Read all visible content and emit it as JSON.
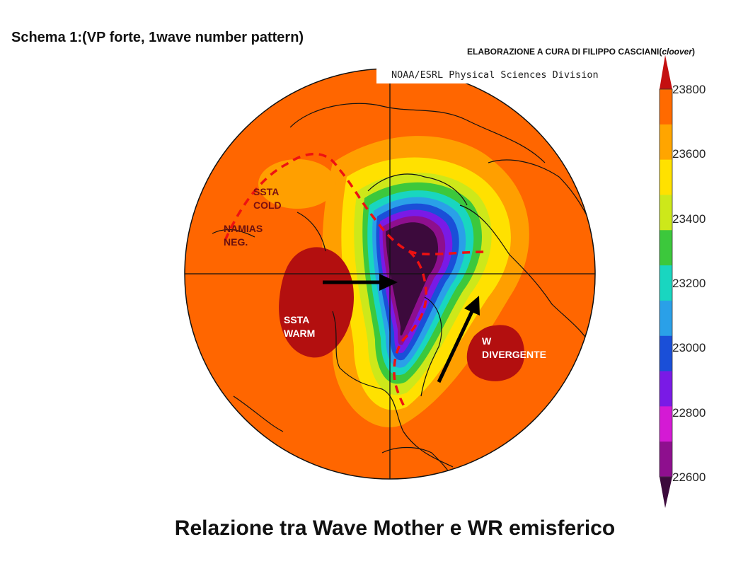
{
  "header": {
    "schema_title": "Schema 1:(VP  forte, 1wave number pattern)",
    "credit_text": "ELABORAZIONE A CURA DI FILIPPO CASCIANI(",
    "credit_user": "cloover",
    "credit_close": ")"
  },
  "map": {
    "source": "NOAA/ESRL Physical Sciences Division",
    "projection": "north polar stereographic",
    "field": "geopotential height",
    "labels": {
      "ssta_cold": "SSTA\nCOLD",
      "namias_neg": "NAMIAS\nNEG.",
      "ssta_warm": "SSTA\nWARM",
      "wr_divergente": "W\nDIVERGENTE"
    },
    "colors": {
      "ocean_background": "#ff6600",
      "dashed_trough": "#ee1111",
      "arrows": "#000000",
      "warm_anomaly": "#b30f0f"
    }
  },
  "colorbar": {
    "ticks": [
      "23800",
      "23600",
      "23400",
      "23200",
      "23000",
      "22800",
      "22600"
    ],
    "colors": [
      "#c41010",
      "#ff6a00",
      "#ffa500",
      "#ffe100",
      "#cde81a",
      "#3cc83c",
      "#19d6c0",
      "#2aa0e8",
      "#1a4fd8",
      "#7a1ae6",
      "#d41ad4",
      "#8e0f8e",
      "#3c0a3c"
    ]
  },
  "footer": {
    "title": "Relazione tra Wave Mother e WR emisferico"
  }
}
